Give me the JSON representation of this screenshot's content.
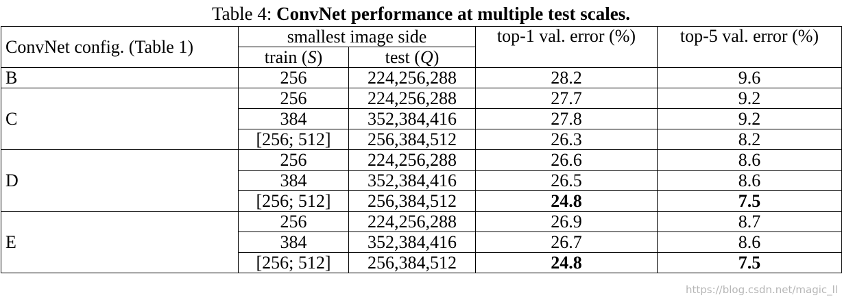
{
  "caption": {
    "label": "Table 4:",
    "title": "ConvNet performance at multiple test scales."
  },
  "header": {
    "config": "ConvNet config. (Table 1)",
    "side": "smallest image side",
    "train": [
      "train (",
      "S",
      ")"
    ],
    "test": [
      "test (",
      "Q",
      ")"
    ],
    "top1": "top-1 val. error (%)",
    "top5": "top-5 val. error (%)"
  },
  "groups": [
    {
      "config": "B",
      "rows": [
        {
          "train": "256",
          "test": "224,256,288",
          "top1": "28.2",
          "top5": "9.6",
          "bold": false
        }
      ]
    },
    {
      "config": "C",
      "rows": [
        {
          "train": "256",
          "test": "224,256,288",
          "top1": "27.7",
          "top5": "9.2",
          "bold": false
        },
        {
          "train": "384",
          "test": "352,384,416",
          "top1": "27.8",
          "top5": "9.2",
          "bold": false
        },
        {
          "train": "[256; 512]",
          "test": "256,384,512",
          "top1": "26.3",
          "top5": "8.2",
          "bold": false
        }
      ]
    },
    {
      "config": "D",
      "rows": [
        {
          "train": "256",
          "test": "224,256,288",
          "top1": "26.6",
          "top5": "8.6",
          "bold": false
        },
        {
          "train": "384",
          "test": "352,384,416",
          "top1": "26.5",
          "top5": "8.6",
          "bold": false
        },
        {
          "train": "[256; 512]",
          "test": "256,384,512",
          "top1": "24.8",
          "top5": "7.5",
          "bold": true
        }
      ]
    },
    {
      "config": "E",
      "rows": [
        {
          "train": "256",
          "test": "224,256,288",
          "top1": "26.9",
          "top5": "8.7",
          "bold": false
        },
        {
          "train": "384",
          "test": "352,384,416",
          "top1": "26.7",
          "top5": "8.6",
          "bold": false
        },
        {
          "train": "[256; 512]",
          "test": "256,384,512",
          "top1": "24.8",
          "top5": "7.5",
          "bold": true
        }
      ]
    }
  ],
  "watermark": "https://blog.csdn.net/magic_ll"
}
